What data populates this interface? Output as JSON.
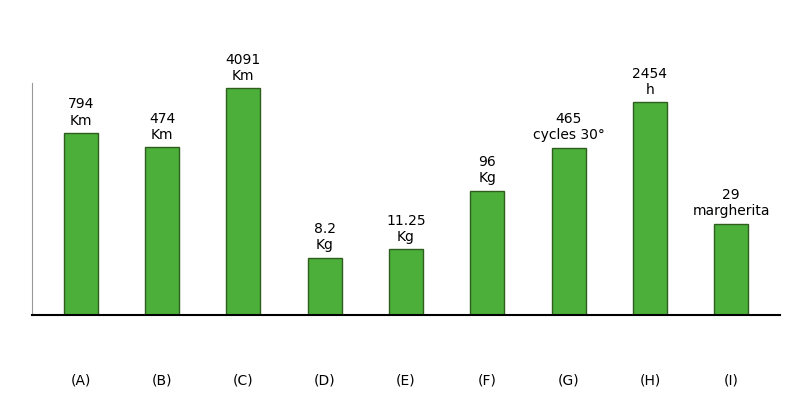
{
  "chart_data": {
    "type": "bar",
    "categories": [
      "(A)",
      "(B)",
      "(C)",
      "(D)",
      "(E)",
      "(F)",
      "(G)",
      "(H)",
      "(I)"
    ],
    "values": [
      794,
      474,
      4091,
      8.2,
      11.25,
      96,
      465,
      2454,
      29
    ],
    "value_labels": [
      "794\nKm",
      "474\nKm",
      "4091\nKm",
      "8.2\nKg",
      "11.25\nKg",
      "96\nKg",
      "465\ncycles 30°",
      "2454\nh",
      "29\nmargherita"
    ],
    "data_labels": true,
    "color": "#4caf3a",
    "log": "y",
    "ylim": [
      1,
      5000
    ],
    "yticks": [],
    "tick_labels": "x",
    "grid": false
  }
}
